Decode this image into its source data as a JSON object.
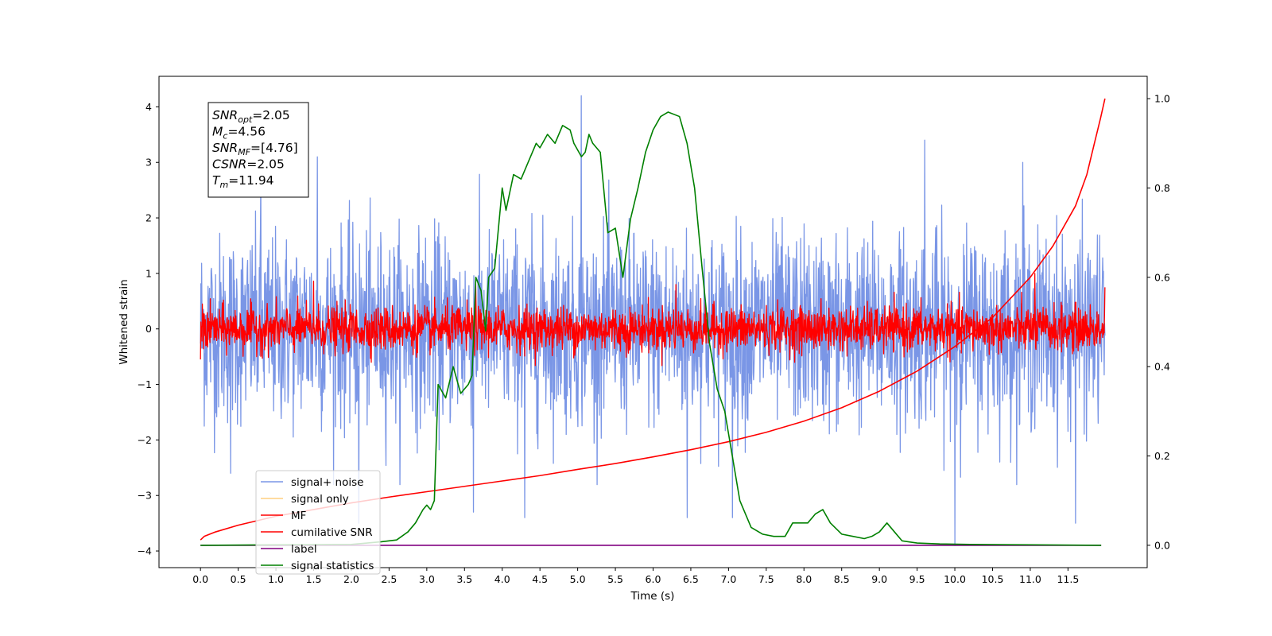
{
  "chart_data": {
    "type": "line",
    "xlabel": "Time (s)",
    "ylabel": "Whitened strain",
    "y2label": "",
    "xlim": [
      -0.55,
      12.55
    ],
    "ylim": [
      -4.3,
      4.55
    ],
    "y2lim": [
      -0.05,
      1.05
    ],
    "xticks": [
      "0.0",
      "0.5",
      "1.0",
      "1.5",
      "2.0",
      "2.5",
      "3.0",
      "3.5",
      "4.0",
      "4.5",
      "5.0",
      "5.5",
      "6.0",
      "6.5",
      "7.0",
      "7.5",
      "8.0",
      "8.5",
      "9.0",
      "9.5",
      "10.0",
      "10.5",
      "11.0",
      "11.5"
    ],
    "xtick_values": [
      0,
      0.5,
      1,
      1.5,
      2,
      2.5,
      3,
      3.5,
      4,
      4.5,
      5,
      5.5,
      6,
      6.5,
      7,
      7.5,
      8,
      8.5,
      9,
      9.5,
      10,
      10.5,
      11,
      11.5
    ],
    "yticks": [
      "4",
      "3",
      "2",
      "1",
      "0",
      "−1",
      "−2",
      "−3",
      "−4"
    ],
    "ytick_values": [
      4,
      3,
      2,
      1,
      0,
      -1,
      -2,
      -3,
      -4
    ],
    "y2ticks": [
      "1.0",
      "0.8",
      "0.6",
      "0.4",
      "0.2",
      "0.0"
    ],
    "y2tick_values": [
      1.0,
      0.8,
      0.6,
      0.4,
      0.2,
      0.0
    ],
    "annotation": [
      {
        "base": "SNR",
        "sub": "opt",
        "rest": "=2.05"
      },
      {
        "base": "M",
        "sub": "c",
        "rest": "=4.56"
      },
      {
        "base": "SNR",
        "sub": "MF",
        "rest": "=[4.76]"
      },
      {
        "base": "CSNR",
        "sub": "",
        "rest": "=2.05"
      },
      {
        "base": "T",
        "sub": "m",
        "rest": "=11.94"
      }
    ],
    "legend": {
      "placement": "lower-left",
      "entries": [
        {
          "label": "signal+ noise",
          "color": "#7a96e6"
        },
        {
          "label": "signal only",
          "color": "#ffcf80"
        },
        {
          "label": "MF",
          "color": "#ff0000"
        },
        {
          "label": "cumilative SNR",
          "color": "#ff0000"
        },
        {
          "label": "label",
          "color": "#800080"
        },
        {
          "label": "signal statistics",
          "color": "#008000"
        }
      ]
    },
    "series": [
      {
        "name": "signal+ noise",
        "axis": "left",
        "color": "#7a96e6",
        "kind": "noise",
        "x_range": [
          0,
          11.99
        ],
        "std": 0.85,
        "spikes": [
          [
            0.4,
            -2.6
          ],
          [
            0.8,
            2.8
          ],
          [
            1.55,
            3.1
          ],
          [
            2.1,
            -3.5
          ],
          [
            3.62,
            -3.3
          ],
          [
            4.3,
            -3.4
          ],
          [
            5.05,
            4.2
          ],
          [
            6.45,
            -3.4
          ],
          [
            7.05,
            -3.4
          ],
          [
            9.6,
            3.4
          ],
          [
            10.0,
            -3.9
          ],
          [
            11.6,
            -3.5
          ],
          [
            10.9,
            3.0
          ]
        ]
      },
      {
        "name": "MF",
        "axis": "left",
        "color": "#ff0000",
        "kind": "noise",
        "x_range": [
          0,
          11.99
        ],
        "std": 0.2,
        "spikes": [
          [
            0,
            0.72
          ],
          [
            0,
            -0.55
          ],
          [
            1.5,
            0.86
          ],
          [
            3.65,
            0.82
          ],
          [
            6.3,
            0.8
          ],
          [
            11.06,
            1.0
          ],
          [
            11.99,
            0.75
          ]
        ]
      },
      {
        "name": "cumilative SNR",
        "axis": "right",
        "color": "#ff0000",
        "kind": "curve",
        "x": [
          0,
          0.05,
          0.2,
          0.5,
          1,
          1.5,
          2,
          2.5,
          3,
          3.5,
          4,
          4.5,
          5,
          5.5,
          6,
          6.5,
          7,
          7.5,
          8,
          8.5,
          9,
          9.5,
          10,
          10.5,
          11,
          11.3,
          11.6,
          11.75,
          11.85,
          11.93,
          11.99
        ],
        "y": [
          0.012,
          0.02,
          0.03,
          0.045,
          0.065,
          0.08,
          0.095,
          0.108,
          0.12,
          0.132,
          0.144,
          0.156,
          0.17,
          0.183,
          0.198,
          0.214,
          0.232,
          0.253,
          0.278,
          0.308,
          0.345,
          0.39,
          0.445,
          0.51,
          0.6,
          0.67,
          0.76,
          0.83,
          0.9,
          0.955,
          1.0
        ]
      },
      {
        "name": "label",
        "axis": "right",
        "color": "#800080",
        "kind": "curve",
        "x": [
          0,
          11.94
        ],
        "y": [
          0.0,
          0.0
        ]
      },
      {
        "name": "signal statistics",
        "axis": "right",
        "color": "#008000",
        "kind": "curve",
        "x": [
          0,
          1,
          2,
          2.4,
          2.6,
          2.75,
          2.85,
          2.95,
          3.0,
          3.05,
          3.1,
          3.15,
          3.25,
          3.35,
          3.45,
          3.55,
          3.6,
          3.65,
          3.72,
          3.78,
          3.82,
          3.9,
          4.0,
          4.05,
          4.15,
          4.25,
          4.3,
          4.45,
          4.5,
          4.6,
          4.7,
          4.8,
          4.9,
          4.95,
          5.05,
          5.1,
          5.15,
          5.2,
          5.3,
          5.4,
          5.5,
          5.6,
          5.7,
          5.8,
          5.9,
          6.0,
          6.1,
          6.2,
          6.35,
          6.45,
          6.55,
          6.65,
          6.75,
          6.85,
          6.95,
          7.05,
          7.15,
          7.3,
          7.45,
          7.6,
          7.75,
          7.85,
          7.95,
          8.05,
          8.15,
          8.25,
          8.35,
          8.5,
          8.65,
          8.8,
          8.9,
          9.0,
          9.1,
          9.2,
          9.3,
          9.5,
          9.8,
          10.2,
          11.0,
          11.94
        ],
        "y": [
          0,
          0.001,
          0.002,
          0.008,
          0.012,
          0.03,
          0.05,
          0.08,
          0.09,
          0.08,
          0.1,
          0.36,
          0.33,
          0.4,
          0.34,
          0.36,
          0.38,
          0.6,
          0.57,
          0.48,
          0.6,
          0.62,
          0.8,
          0.75,
          0.83,
          0.82,
          0.84,
          0.9,
          0.89,
          0.92,
          0.9,
          0.94,
          0.93,
          0.9,
          0.87,
          0.88,
          0.92,
          0.9,
          0.88,
          0.7,
          0.71,
          0.6,
          0.73,
          0.8,
          0.88,
          0.93,
          0.96,
          0.97,
          0.96,
          0.9,
          0.8,
          0.62,
          0.45,
          0.35,
          0.3,
          0.2,
          0.1,
          0.04,
          0.025,
          0.02,
          0.02,
          0.05,
          0.05,
          0.05,
          0.07,
          0.08,
          0.05,
          0.025,
          0.02,
          0.015,
          0.02,
          0.03,
          0.05,
          0.03,
          0.01,
          0.005,
          0.003,
          0.002,
          0.001,
          0.0
        ]
      }
    ]
  }
}
